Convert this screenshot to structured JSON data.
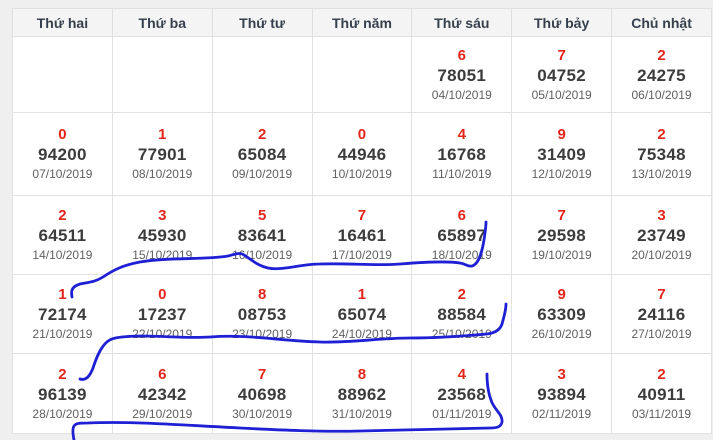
{
  "table": {
    "headers": [
      "Thứ hai",
      "Thứ ba",
      "Thứ tư",
      "Thứ năm",
      "Thứ sáu",
      "Thứ bảy",
      "Chủ nhật"
    ],
    "rows": [
      [
        {
          "digit": "",
          "number": "",
          "date": "",
          "bg": "white"
        },
        {
          "digit": "",
          "number": "",
          "date": "",
          "bg": "white"
        },
        {
          "digit": "",
          "number": "",
          "date": "",
          "bg": "white"
        },
        {
          "digit": "",
          "number": "",
          "date": "",
          "bg": "white"
        },
        {
          "digit": "6",
          "number": "78051",
          "date": "04/10/2019",
          "bg": "white"
        },
        {
          "digit": "7",
          "number": "04752",
          "date": "05/10/2019",
          "bg": "blue"
        },
        {
          "digit": "2",
          "number": "24275",
          "date": "06/10/2019",
          "bg": "blue"
        }
      ],
      [
        {
          "digit": "0",
          "number": "94200",
          "date": "07/10/2019",
          "bg": "white"
        },
        {
          "digit": "1",
          "number": "77901",
          "date": "08/10/2019",
          "bg": "white"
        },
        {
          "digit": "2",
          "number": "65084",
          "date": "09/10/2019",
          "bg": "white"
        },
        {
          "digit": "0",
          "number": "44946",
          "date": "10/10/2019",
          "bg": "white"
        },
        {
          "digit": "4",
          "number": "16768",
          "date": "11/10/2019",
          "bg": "white"
        },
        {
          "digit": "9",
          "number": "31409",
          "date": "12/10/2019",
          "bg": "yellow"
        },
        {
          "digit": "2",
          "number": "75348",
          "date": "13/10/2019",
          "bg": "blue"
        }
      ],
      [
        {
          "digit": "2",
          "number": "64511",
          "date": "14/10/2019",
          "bg": "white"
        },
        {
          "digit": "3",
          "number": "45930",
          "date": "15/10/2019",
          "bg": "white"
        },
        {
          "digit": "5",
          "number": "83641",
          "date": "16/10/2019",
          "bg": "white"
        },
        {
          "digit": "7",
          "number": "16461",
          "date": "17/10/2019",
          "bg": "white"
        },
        {
          "digit": "6",
          "number": "65897",
          "date": "18/10/2019",
          "bg": "white"
        },
        {
          "digit": "7",
          "number": "29598",
          "date": "19/10/2019",
          "bg": "yellow"
        },
        {
          "digit": "3",
          "number": "23749",
          "date": "20/10/2019",
          "bg": "blue"
        }
      ],
      [
        {
          "digit": "1",
          "number": "72174",
          "date": "21/10/2019",
          "bg": "white"
        },
        {
          "digit": "0",
          "number": "17237",
          "date": "22/10/2019",
          "bg": "white"
        },
        {
          "digit": "8",
          "number": "08753",
          "date": "23/10/2019",
          "bg": "white"
        },
        {
          "digit": "1",
          "number": "65074",
          "date": "24/10/2019",
          "bg": "white"
        },
        {
          "digit": "2",
          "number": "88584",
          "date": "25/10/2019",
          "bg": "white"
        },
        {
          "digit": "9",
          "number": "63309",
          "date": "26/10/2019",
          "bg": "yellow"
        },
        {
          "digit": "7",
          "number": "24116",
          "date": "27/10/2019",
          "bg": "blue"
        }
      ],
      [
        {
          "digit": "2",
          "number": "96139",
          "date": "28/10/2019",
          "bg": "white"
        },
        {
          "digit": "6",
          "number": "42342",
          "date": "29/10/2019",
          "bg": "white"
        },
        {
          "digit": "7",
          "number": "40698",
          "date": "30/10/2019",
          "bg": "white"
        },
        {
          "digit": "8",
          "number": "88962",
          "date": "31/10/2019",
          "bg": "white"
        },
        {
          "digit": "4",
          "number": "23568",
          "date": "01/11/2019",
          "bg": "white"
        },
        {
          "digit": "3",
          "number": "93894",
          "date": "02/11/2019",
          "bg": "yellow"
        },
        {
          "digit": "2",
          "number": "40911",
          "date": "03/11/2019",
          "bg": "yellow"
        }
      ]
    ]
  },
  "colors": {
    "red_digit": "#e3261c",
    "number_text": "#3c3c3c",
    "date_text": "#5f5f5f",
    "header_text": "#363f4e",
    "header_bg": "#f4f4f4",
    "saturday_bg": "#fbe7a6",
    "sunday_bg": "#aad4f2",
    "grid_border": "#e2e2e2",
    "page_margin_bg": "#efefef",
    "pen_blue": "#1f1fd4"
  },
  "annotations": {
    "pen_color": "#1f1fd4",
    "pen_width": 2.8,
    "paths": [
      "M 72,297 C 71,291 71,287 80,284 C 90,282 95,282 103,277 C 115,269 124,265 140,262 C 170,257 205,260 228,256 C 236,254 240,252 244,255 C 252,260 258,266 268,268 C 282,271 300,264 320,264 C 350,263 375,266 400,264 C 425,262 448,261 460,263 C 466,264 468,267 472,266 C 479,264 482,252 484,240 C 485,233 486,227 486,222",
      "M 80,379 C 86,381 90,376 93,368 C 96,359 99,351 104,345 C 108,340 112,338 122,337 C 150,334 180,339 210,337 C 250,334 280,341 320,342 C 350,343 380,338 410,338 C 440,338 465,336 487,334 C 495,333 500,330 502,324 C 504,317 506,310 506,304",
      "M 74,440 C 73,435 72,429 74,426 C 76,423 80,423 88,423 C 130,421 180,425 240,428 C 280,430 320,432 360,431 C 400,430 450,429 490,428 C 497,428 501,427 502,422 C 503,414 494,410 491,400 C 488,392 487,382 487,374"
    ]
  }
}
